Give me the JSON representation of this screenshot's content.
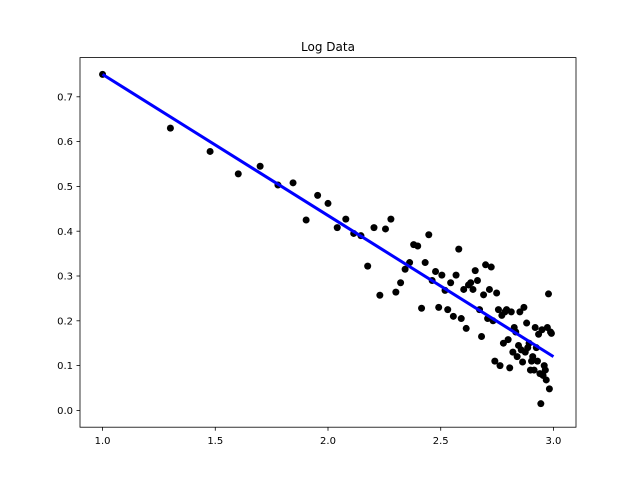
{
  "chart_data": {
    "type": "scatter",
    "title": "Log Data",
    "xlabel": "",
    "ylabel": "",
    "xlim": [
      0.9,
      3.1
    ],
    "ylim": [
      -0.0375,
      0.7875
    ],
    "xticks": [
      1.0,
      1.5,
      2.0,
      2.5,
      3.0
    ],
    "xtick_labels": [
      "1.0",
      "1.5",
      "2.0",
      "2.5",
      "3.0"
    ],
    "yticks": [
      0.0,
      0.1,
      0.2,
      0.3,
      0.4,
      0.5,
      0.6,
      0.7
    ],
    "ytick_labels": [
      "0.0",
      "0.1",
      "0.2",
      "0.3",
      "0.4",
      "0.5",
      "0.6",
      "0.7"
    ],
    "grid": false,
    "legend": "none",
    "series": [
      {
        "kind": "scatter",
        "color": "#000000",
        "points": [
          [
            1.0,
            0.75
          ],
          [
            1.301,
            0.63
          ],
          [
            1.477,
            0.578
          ],
          [
            1.602,
            0.528
          ],
          [
            1.699,
            0.545
          ],
          [
            1.778,
            0.503
          ],
          [
            1.845,
            0.508
          ],
          [
            1.903,
            0.425
          ],
          [
            1.954,
            0.48
          ],
          [
            2.0,
            0.462
          ],
          [
            2.041,
            0.408
          ],
          [
            2.079,
            0.427
          ],
          [
            2.114,
            0.395
          ],
          [
            2.146,
            0.39
          ],
          [
            2.176,
            0.322
          ],
          [
            2.204,
            0.408
          ],
          [
            2.23,
            0.257
          ],
          [
            2.255,
            0.405
          ],
          [
            2.279,
            0.427
          ],
          [
            2.301,
            0.264
          ],
          [
            2.322,
            0.285
          ],
          [
            2.342,
            0.315
          ],
          [
            2.362,
            0.33
          ],
          [
            2.38,
            0.37
          ],
          [
            2.398,
            0.367
          ],
          [
            2.415,
            0.228
          ],
          [
            2.431,
            0.33
          ],
          [
            2.447,
            0.392
          ],
          [
            2.462,
            0.29
          ],
          [
            2.477,
            0.31
          ],
          [
            2.491,
            0.23
          ],
          [
            2.505,
            0.302
          ],
          [
            2.519,
            0.268
          ],
          [
            2.531,
            0.225
          ],
          [
            2.544,
            0.285
          ],
          [
            2.556,
            0.21
          ],
          [
            2.568,
            0.302
          ],
          [
            2.58,
            0.36
          ],
          [
            2.591,
            0.205
          ],
          [
            2.602,
            0.27
          ],
          [
            2.613,
            0.183
          ],
          [
            2.623,
            0.28
          ],
          [
            2.633,
            0.285
          ],
          [
            2.643,
            0.27
          ],
          [
            2.653,
            0.312
          ],
          [
            2.663,
            0.29
          ],
          [
            2.672,
            0.225
          ],
          [
            2.681,
            0.165
          ],
          [
            2.69,
            0.258
          ],
          [
            2.699,
            0.325
          ],
          [
            2.708,
            0.205
          ],
          [
            2.716,
            0.27
          ],
          [
            2.724,
            0.32
          ],
          [
            2.732,
            0.2
          ],
          [
            2.74,
            0.11
          ],
          [
            2.748,
            0.262
          ],
          [
            2.756,
            0.225
          ],
          [
            2.763,
            0.1
          ],
          [
            2.771,
            0.212
          ],
          [
            2.778,
            0.15
          ],
          [
            2.785,
            0.22
          ],
          [
            2.792,
            0.225
          ],
          [
            2.799,
            0.158
          ],
          [
            2.806,
            0.095
          ],
          [
            2.813,
            0.22
          ],
          [
            2.82,
            0.13
          ],
          [
            2.826,
            0.185
          ],
          [
            2.833,
            0.175
          ],
          [
            2.839,
            0.12
          ],
          [
            2.845,
            0.145
          ],
          [
            2.851,
            0.22
          ],
          [
            2.857,
            0.135
          ],
          [
            2.863,
            0.108
          ],
          [
            2.869,
            0.23
          ],
          [
            2.875,
            0.13
          ],
          [
            2.881,
            0.195
          ],
          [
            2.886,
            0.14
          ],
          [
            2.892,
            0.15
          ],
          [
            2.898,
            0.09
          ],
          [
            2.903,
            0.11
          ],
          [
            2.908,
            0.12
          ],
          [
            2.914,
            0.09
          ],
          [
            2.919,
            0.185
          ],
          [
            2.924,
            0.14
          ],
          [
            2.929,
            0.11
          ],
          [
            2.934,
            0.17
          ],
          [
            2.94,
            0.082
          ],
          [
            2.944,
            0.015
          ],
          [
            2.949,
            0.18
          ],
          [
            2.954,
            0.078
          ],
          [
            2.959,
            0.1
          ],
          [
            2.964,
            0.09
          ],
          [
            2.968,
            0.068
          ],
          [
            2.973,
            0.185
          ],
          [
            2.978,
            0.26
          ],
          [
            2.982,
            0.048
          ],
          [
            2.987,
            0.175
          ],
          [
            2.991,
            0.172
          ]
        ]
      },
      {
        "kind": "line",
        "color": "#0000ff",
        "points": [
          [
            1.0,
            0.75
          ],
          [
            3.0,
            0.12
          ]
        ]
      }
    ]
  }
}
